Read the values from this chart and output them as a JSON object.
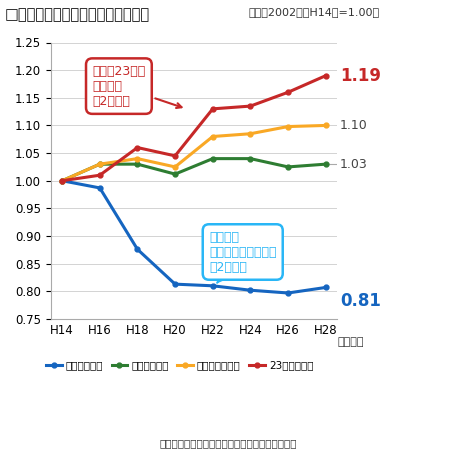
{
  "title": "□全国の高校卒業者、学生数の推移",
  "title_sub": "（指数2002年（H14）=1.00）",
  "x_labels": [
    "H14",
    "H16",
    "H18",
    "H20",
    "H22",
    "H24",
    "H26",
    "H28"
  ],
  "x_label_year": "（年度）",
  "x_values": [
    0,
    1,
    2,
    3,
    4,
    5,
    6,
    7
  ],
  "blue_data": [
    1.0,
    0.987,
    0.876,
    0.813,
    0.81,
    0.802,
    0.797,
    0.807
  ],
  "green_data": [
    1.0,
    1.03,
    1.03,
    1.012,
    1.04,
    1.04,
    1.025,
    1.03
  ],
  "yellow_data": [
    1.0,
    1.03,
    1.04,
    1.025,
    1.08,
    1.085,
    1.098,
    1.1
  ],
  "red_data": [
    1.0,
    1.01,
    1.06,
    1.045,
    1.13,
    1.135,
    1.16,
    1.19
  ],
  "blue_color": "#1565C0",
  "green_color": "#2E7D32",
  "yellow_color": "#F9A825",
  "red_color": "#C62828",
  "light_blue_color": "#29B6F6",
  "ylim": [
    0.75,
    1.25
  ],
  "yticks": [
    0.75,
    0.8,
    0.85,
    0.9,
    0.95,
    1.0,
    1.05,
    1.1,
    1.15,
    1.2,
    1.25
  ],
  "source": "出典：学校基本調査（文部科学省）をもとに作成",
  "annotation_red_text": "東京都23区の\n学生数は\n約2割増加",
  "annotation_blue_text": "一方で、\n全国の高校卒業者は\n約2割減少",
  "end_label_red": "1.19",
  "end_label_yellow": "1.10",
  "end_label_green": "1.03",
  "end_label_blue": "0.81",
  "legend_labels": [
    "高校卒業者数",
    "全国の学生数",
    "東京都の学生数",
    "23区の学生数"
  ]
}
